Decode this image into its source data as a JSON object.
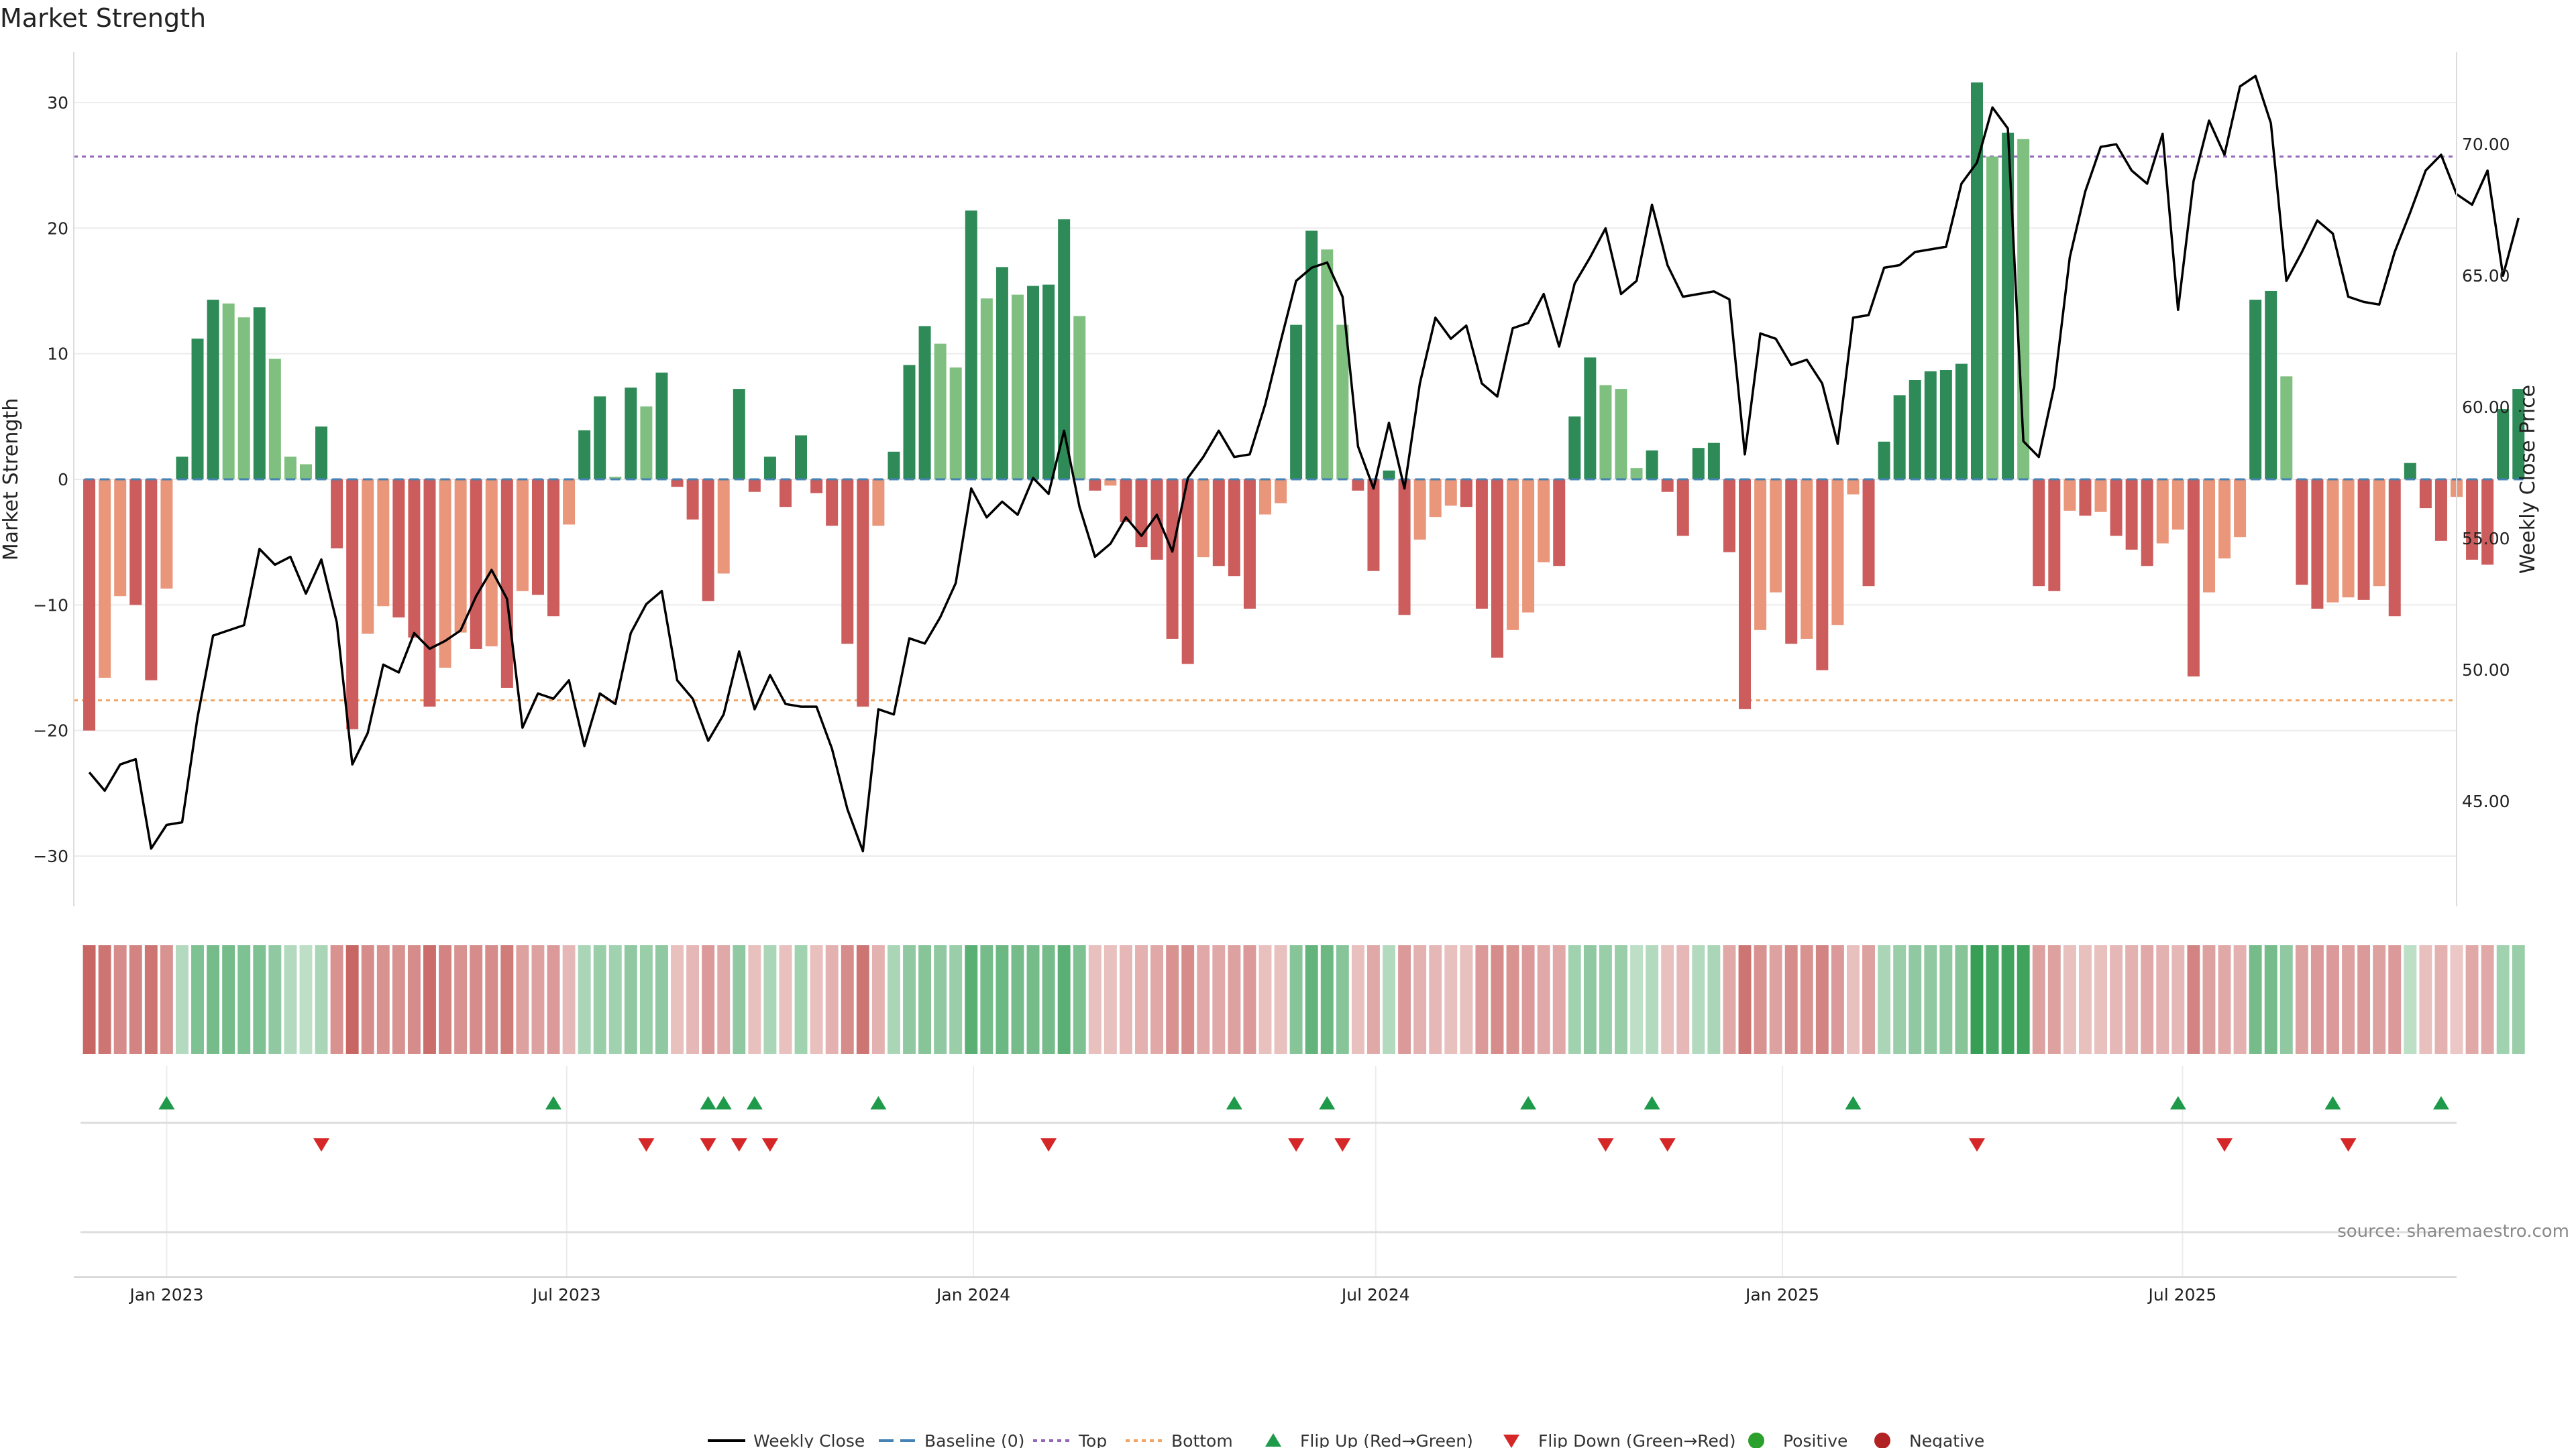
{
  "title": "Market Strength",
  "source": "source: sharemaestro.com",
  "colors": {
    "strong_green": "#2e8b57",
    "light_green": "#7fbf7f",
    "strong_red": "#cd5c5c",
    "light_red": "#e9967a",
    "line": "#000000",
    "top_line": "#9467bd",
    "bottom_line": "#f4a460",
    "baseline": "#4682b4",
    "flip_up": "#1f9a4a",
    "flip_down": "#d62728",
    "positive": "#2ca02c",
    "negative": "#b22222"
  },
  "chart_data": {
    "type": "bar",
    "ylabel_left": "Market Strength",
    "ylabel_right": "Weekly Close Price",
    "ylim_left": [
      -34,
      34
    ],
    "yticks_left": [
      -30,
      -20,
      -10,
      0,
      10,
      20,
      30
    ],
    "ylim_right": [
      41,
      73.5
    ],
    "yticks_right": [
      45,
      50,
      55,
      60,
      65,
      70
    ],
    "yticks_right_labels": [
      "45.00",
      "50.00",
      "55.00",
      "60.00",
      "65.00",
      "70.00"
    ],
    "top_threshold": 25.7,
    "bottom_threshold": -17.6,
    "x_date_range": [
      "2022-11-20",
      "2025-11-02"
    ],
    "x_tick_dates": [
      "2023-01-01",
      "2023-07-01",
      "2024-01-01",
      "2024-07-01",
      "2025-01-01",
      "2025-07-01"
    ],
    "x_tick_labels": [
      "Jan 2023",
      "Jul 2023",
      "Jan 2024",
      "Jul 2024",
      "Jan 2025",
      "Jul 2025"
    ],
    "grid": true,
    "legend_placement": "bottom-center",
    "legend": [
      "Weekly Close",
      "Baseline (0)",
      "Top",
      "Bottom",
      "Flip Up (Red→Green)",
      "Flip Down (Green→Red)",
      "Positive",
      "Negative"
    ],
    "start_date": "2022-11-27",
    "week_step_days": 7,
    "strength": [
      -20,
      -15.8,
      -9.3,
      -10,
      -16,
      -8.7,
      1.8,
      11.2,
      14.3,
      14,
      12.9,
      13.7,
      9.6,
      1.8,
      1.2,
      4.2,
      -5.5,
      -19.9,
      -12.3,
      -10.1,
      -11,
      -12.6,
      -18.1,
      -15,
      -12.2,
      -13.5,
      -13.3,
      -16.6,
      -8.9,
      -9.2,
      -10.9,
      -3.6,
      3.9,
      6.6,
      0.2,
      7.3,
      5.8,
      8.5,
      -0.6,
      -3.2,
      -9.7,
      -7.5,
      7.2,
      -1,
      1.8,
      -2.2,
      3.5,
      -1.1,
      -3.7,
      -13.1,
      -18.1,
      -3.7,
      2.2,
      9.1,
      12.2,
      10.8,
      8.9,
      21.4,
      14.4,
      16.9,
      14.7,
      15.4,
      15.5,
      20.7,
      13,
      -0.9,
      -0.5,
      -3.4,
      -5.4,
      -6.4,
      -12.7,
      -14.7,
      -6.2,
      -6.9,
      -7.7,
      -10.3,
      -2.8,
      -1.9,
      12.3,
      19.8,
      18.3,
      12.3,
      -0.9,
      -7.3,
      0.7,
      -10.8,
      -4.8,
      -3,
      -2.1,
      -2.2,
      -10.3,
      -14.2,
      -12,
      -10.6,
      -6.6,
      -6.9,
      5,
      9.7,
      7.5,
      7.2,
      0.9,
      2.3,
      -1,
      -4.5,
      2.5,
      2.9,
      -5.8,
      -18.3,
      -12,
      -9,
      -13.1,
      -12.7,
      -15.2,
      -11.6,
      -1.2,
      -8.5,
      3,
      6.7,
      7.9,
      8.6,
      8.7,
      9.2,
      31.6,
      25.7,
      27.6,
      27.1,
      -8.5,
      -8.9,
      -2.5,
      -2.9,
      -2.6,
      -4.5,
      -5.6,
      -6.9,
      -5.1,
      -4,
      -15.7,
      -9,
      -6.3,
      -4.6,
      14.3,
      15,
      8.2,
      -8.4,
      -10.3,
      -9.8,
      -9.4,
      -9.6,
      -8.5,
      -10.9,
      1.3,
      -2.3,
      -4.9,
      -1.4,
      -6.4,
      -6.8,
      5.6,
      7.2
    ],
    "close": [
      46.1,
      45.4,
      46.4,
      46.6,
      43.2,
      44.1,
      44.2,
      48.2,
      51.3,
      51.5,
      51.7,
      54.6,
      54,
      54.3,
      52.9,
      54.2,
      51.8,
      46.4,
      47.6,
      50.2,
      49.9,
      51.4,
      50.8,
      51.1,
      51.5,
      52.8,
      53.8,
      52.7,
      47.8,
      49.1,
      48.9,
      49.6,
      47.1,
      49.1,
      48.7,
      51.4,
      52.5,
      53,
      49.6,
      48.9,
      47.3,
      48.3,
      50.7,
      48.5,
      49.8,
      48.7,
      48.6,
      48.6,
      47,
      44.7,
      43.1,
      48.5,
      48.3,
      51.2,
      51,
      52,
      53.3,
      56.9,
      55.8,
      56.4,
      55.9,
      57.3,
      56.7,
      59.1,
      56.2,
      54.3,
      54.8,
      55.8,
      55.1,
      55.9,
      54.5,
      57.3,
      58.1,
      59.1,
      58.1,
      58.2,
      60.1,
      62.5,
      64.8,
      65.3,
      65.5,
      64.2,
      58.5,
      56.9,
      59.4,
      56.9,
      60.9,
      63.4,
      62.6,
      63.1,
      60.9,
      60.4,
      63,
      63.2,
      64.3,
      62.3,
      64.7,
      65.7,
      66.8,
      64.3,
      64.8,
      67.7,
      65.4,
      64.2,
      64.3,
      64.4,
      64.1,
      58.2,
      62.8,
      62.6,
      61.6,
      61.8,
      60.9,
      58.6,
      63.4,
      63.5,
      65.3,
      65.4,
      65.9,
      66,
      66.1,
      68.5,
      69.3,
      71.4,
      70.6,
      58.7,
      58.1,
      60.8,
      65.7,
      68.2,
      69.9,
      70,
      69,
      68.5,
      70.4,
      63.7,
      68.6,
      70.9,
      69.6,
      72.2,
      72.6,
      70.8,
      64.8,
      65.9,
      67.1,
      66.6,
      64.2,
      64,
      63.9,
      65.9,
      67.4,
      69,
      69.6,
      68.1,
      67.7,
      69,
      65,
      67.2
    ],
    "heat": [
      -0.85,
      -0.75,
      -0.6,
      -0.65,
      -0.75,
      -0.55,
      0.25,
      0.55,
      0.6,
      0.6,
      0.55,
      0.55,
      0.45,
      0.25,
      0.2,
      0.3,
      -0.55,
      -0.85,
      -0.6,
      -0.55,
      -0.55,
      -0.6,
      -0.8,
      -0.65,
      -0.55,
      -0.6,
      -0.6,
      -0.7,
      -0.45,
      -0.45,
      -0.5,
      -0.3,
      0.3,
      0.4,
      0.35,
      0.45,
      0.4,
      0.45,
      -0.25,
      -0.3,
      -0.5,
      -0.4,
      0.45,
      -0.25,
      0.3,
      -0.25,
      0.35,
      -0.25,
      -0.35,
      -0.6,
      -0.75,
      -0.35,
      0.3,
      0.45,
      0.5,
      0.45,
      0.4,
      0.75,
      0.6,
      0.65,
      0.6,
      0.6,
      0.6,
      0.75,
      0.55,
      -0.25,
      -0.25,
      -0.3,
      -0.35,
      -0.4,
      -0.55,
      -0.6,
      -0.4,
      -0.4,
      -0.45,
      -0.5,
      -0.25,
      -0.25,
      0.5,
      0.7,
      0.65,
      0.5,
      -0.25,
      -0.4,
      0.25,
      -0.5,
      -0.35,
      -0.3,
      -0.25,
      -0.25,
      -0.5,
      -0.6,
      -0.55,
      -0.5,
      -0.4,
      -0.4,
      0.35,
      0.45,
      0.4,
      0.4,
      0.2,
      0.25,
      -0.25,
      -0.3,
      0.25,
      0.3,
      -0.4,
      -0.75,
      -0.55,
      -0.45,
      -0.6,
      -0.55,
      -0.65,
      -0.5,
      -0.25,
      -0.45,
      0.3,
      0.4,
      0.45,
      0.45,
      0.45,
      0.5,
      0.95,
      0.85,
      0.9,
      0.9,
      -0.45,
      -0.45,
      -0.25,
      -0.25,
      -0.25,
      -0.3,
      -0.35,
      -0.4,
      -0.35,
      -0.3,
      -0.65,
      -0.45,
      -0.4,
      -0.35,
      0.6,
      0.6,
      0.45,
      -0.45,
      -0.5,
      -0.5,
      -0.45,
      -0.5,
      -0.45,
      -0.5,
      0.2,
      -0.25,
      -0.35,
      -0.2,
      -0.4,
      -0.4,
      0.35,
      0.4
    ],
    "flip_up_dates": [
      "2023-01-01",
      "2023-06-25",
      "2023-09-03",
      "2023-09-10",
      "2023-09-24",
      "2023-11-19",
      "2024-04-28",
      "2024-06-09",
      "2024-09-08",
      "2024-11-03",
      "2025-02-02",
      "2025-06-29",
      "2025-09-07",
      "2025-10-26"
    ],
    "flip_down_dates": [
      "2023-03-12",
      "2023-08-06",
      "2023-09-03",
      "2023-09-17",
      "2023-10-01",
      "2024-02-04",
      "2024-05-26",
      "2024-06-16",
      "2024-10-13",
      "2024-11-10",
      "2025-03-30",
      "2025-07-20",
      "2025-09-14"
    ]
  }
}
